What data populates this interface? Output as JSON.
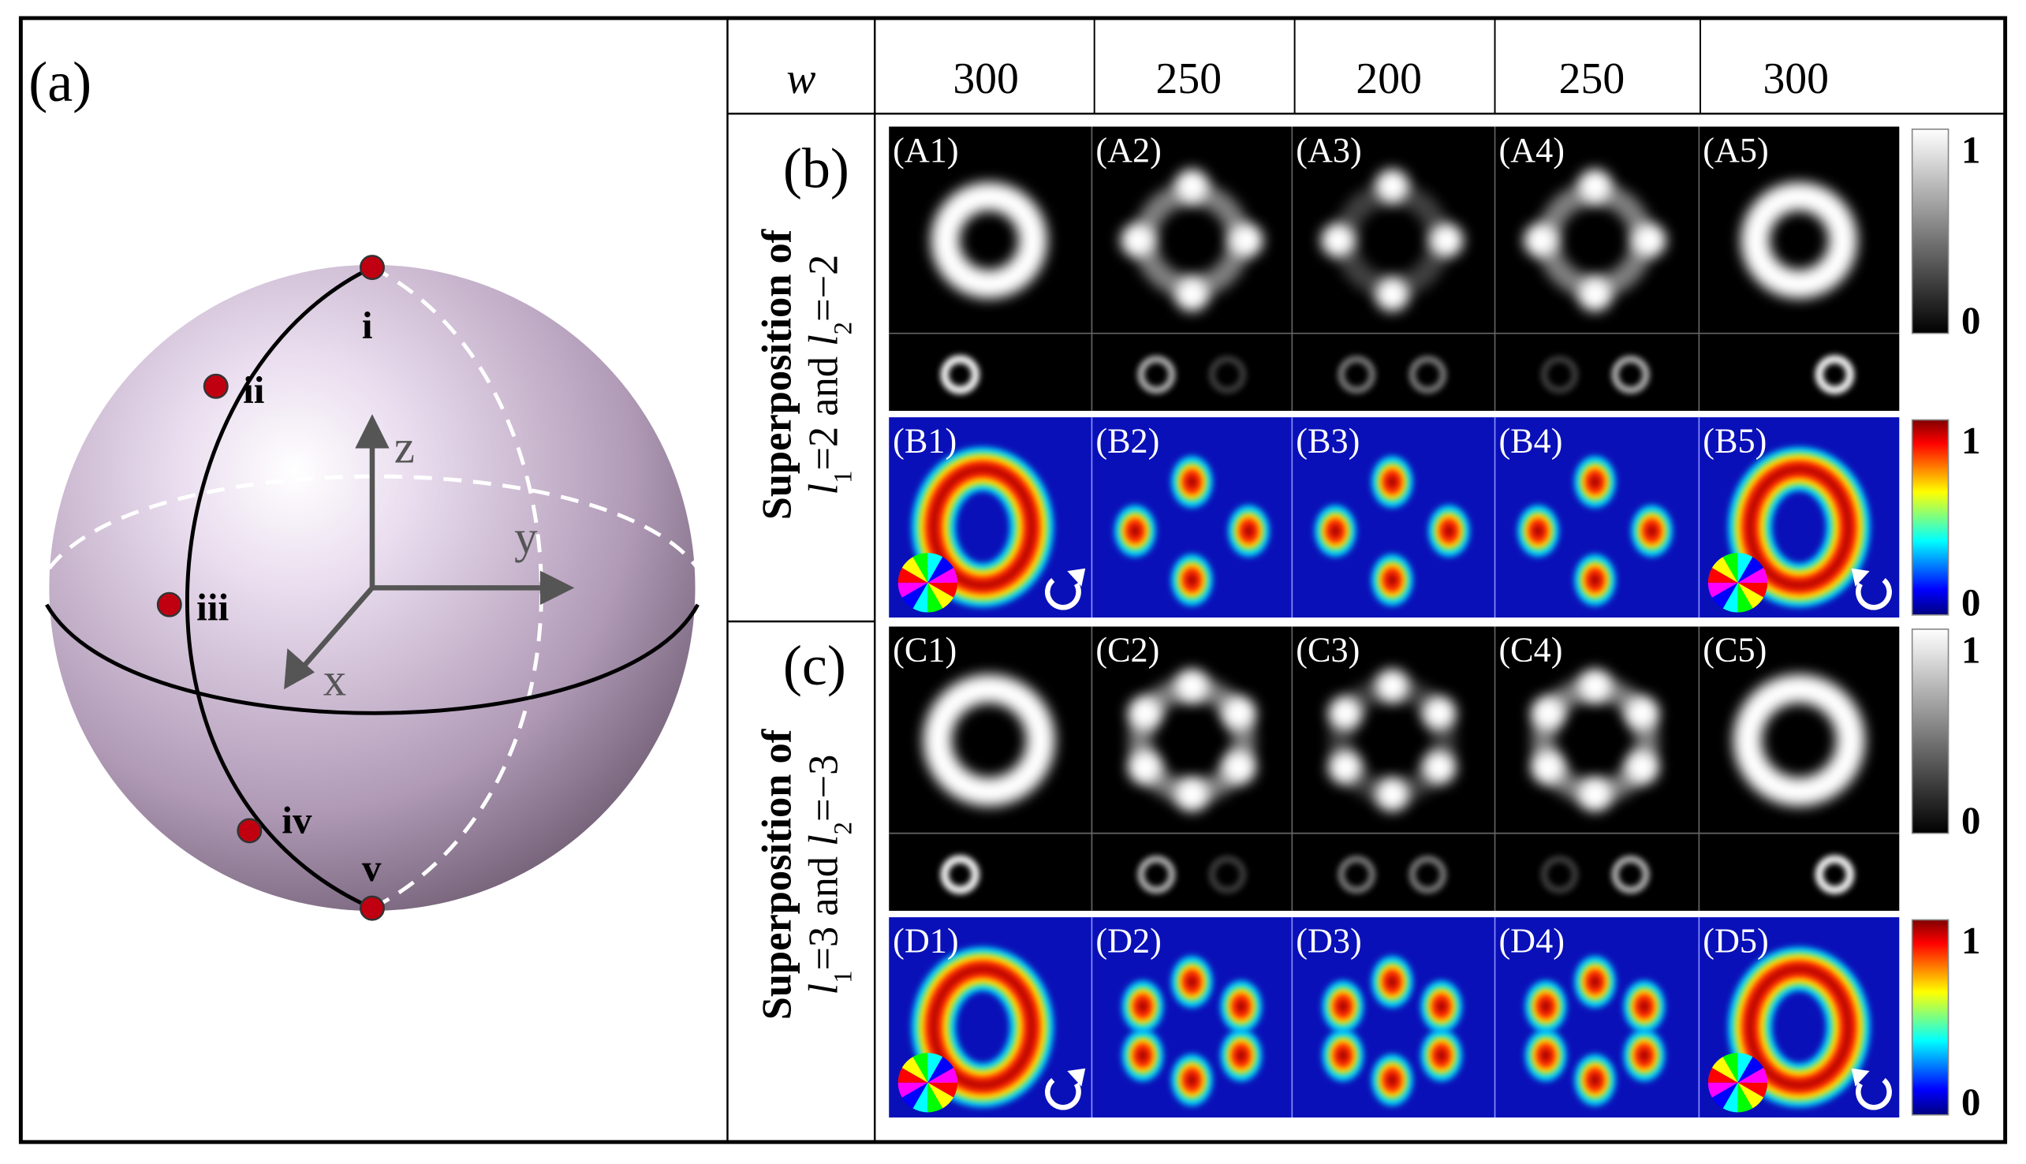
{
  "panel_a": {
    "label": "(a)",
    "points": [
      "i",
      "ii",
      "iii",
      "iv",
      "v"
    ],
    "axes": [
      "z",
      "y",
      "x"
    ]
  },
  "header": {
    "param": "w",
    "values": [
      300,
      250,
      200,
      250,
      300
    ]
  },
  "panel_b": {
    "label": "(b)",
    "row_title": "Superposition of",
    "formula": [
      "l",
      "1",
      "=2 and ",
      "l",
      "2",
      "=−2"
    ],
    "intensity_labels": [
      "(A1)",
      "(A2)",
      "(A3)",
      "(A4)",
      "(A5)"
    ],
    "phase_labels": [
      "(B1)",
      "(B2)",
      "(B3)",
      "(B4)",
      "(B5)"
    ]
  },
  "panel_c": {
    "label": "(c)",
    "row_title": "Superposition of",
    "formula": [
      "l",
      "1",
      "=3 and ",
      "l",
      "2",
      "=−3"
    ],
    "intensity_labels": [
      "(C1)",
      "(C2)",
      "(C3)",
      "(C4)",
      "(C5)"
    ],
    "phase_labels": [
      "(D1)",
      "(D2)",
      "(D3)",
      "(D4)",
      "(D5)"
    ]
  },
  "colorbar": {
    "max": 1,
    "min": 0
  }
}
